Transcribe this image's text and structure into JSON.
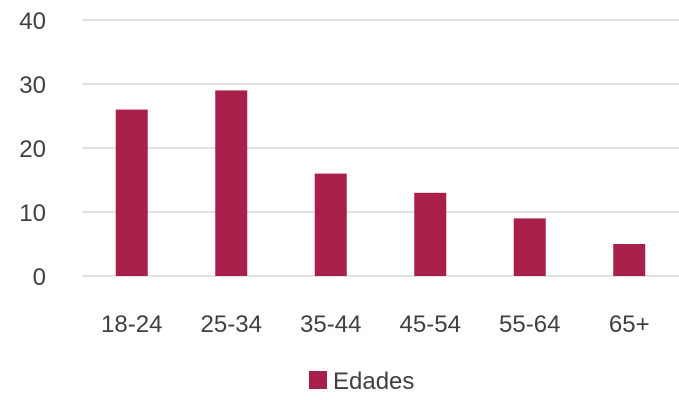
{
  "chart_data": {
    "type": "bar",
    "categories": [
      "18-24",
      "25-34",
      "35-44",
      "45-54",
      "55-64",
      "65+"
    ],
    "series": [
      {
        "name": "Edades",
        "values": [
          26,
          29,
          16,
          13,
          9,
          5
        ],
        "color": "#A8204A"
      }
    ],
    "ylim": [
      0,
      40
    ],
    "yticks": [
      0,
      10,
      20,
      30,
      40
    ],
    "grid": true,
    "legend": "bottom",
    "title": "",
    "xlabel": "",
    "ylabel": ""
  }
}
